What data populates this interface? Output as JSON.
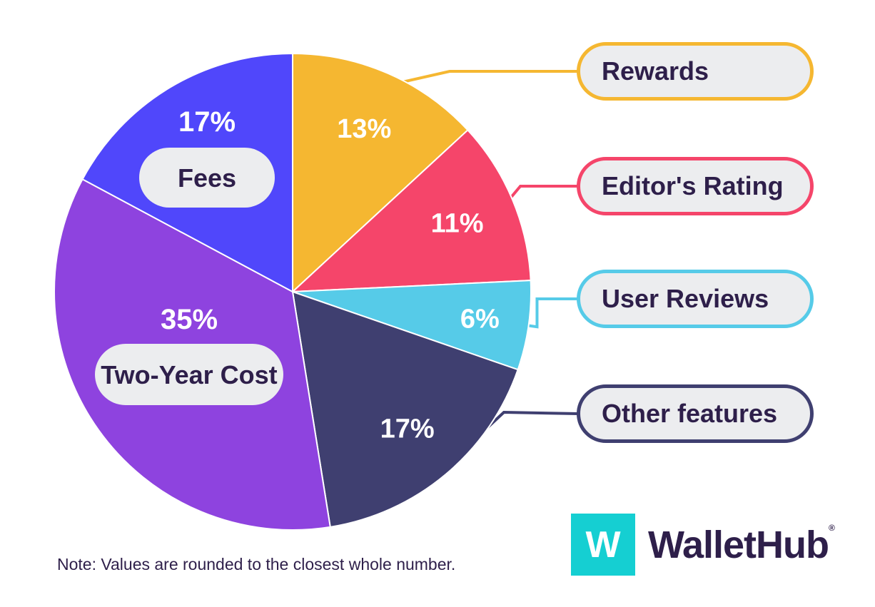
{
  "chart_data": {
    "type": "pie",
    "slices": [
      {
        "label": "Rewards",
        "value": 13,
        "value_label": "13%",
        "color": "#f5b731",
        "legend": "Rewards"
      },
      {
        "label": "Editor's Rating",
        "value": 11,
        "value_label": "11%",
        "color": "#f5456a",
        "legend": "Editor's Rating"
      },
      {
        "label": "User Reviews",
        "value": 6,
        "value_label": "6%",
        "color": "#56cbe8",
        "legend": "User Reviews"
      },
      {
        "label": "Other features",
        "value": 17,
        "value_label": "17%",
        "color": "#3f3f70",
        "legend": "Other features"
      },
      {
        "label": "Two-Year Cost",
        "value": 35,
        "value_label": "35%",
        "color": "#8e43df",
        "inline": "Two-Year Cost"
      },
      {
        "label": "Fees",
        "value": 17,
        "value_label": "17%",
        "color": "#5047fb",
        "inline": "Fees"
      }
    ],
    "legend_placement": "right"
  },
  "note": "Note: Values are rounded to the closest whole number.",
  "brand": {
    "logo_letter": "W",
    "name": "WalletHub",
    "reg_mark": "®",
    "accent": "#15cfd2",
    "text_color": "#2e1f4a"
  }
}
